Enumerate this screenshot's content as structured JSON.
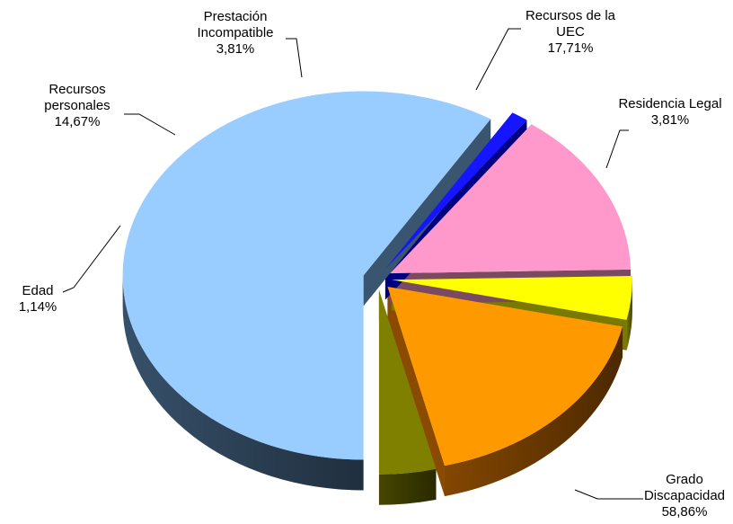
{
  "chart_data": {
    "type": "pie",
    "title": "",
    "exploded": true,
    "three_d": true,
    "slices": [
      {
        "name_lines": [
          "Grado",
          "Discapacidad"
        ],
        "value_text": "58,86%",
        "value": 58.86,
        "color": "#99CCFF",
        "side_color": "#3A5570"
      },
      {
        "name_lines": [
          "Edad"
        ],
        "value_text": "1,14%",
        "value": 1.14,
        "color": "#1515FF",
        "side_color": "#000080"
      },
      {
        "name_lines": [
          "Recursos",
          "personales"
        ],
        "value_text": "14,67%",
        "value": 14.67,
        "color": "#FF99CC",
        "side_color": "#7A4A60"
      },
      {
        "name_lines": [
          "Prestación",
          "Incompatible"
        ],
        "value_text": "3,81%",
        "value": 3.81,
        "color": "#FFFF00",
        "side_color": "#7A7A00"
      },
      {
        "name_lines": [
          "Recursos de la",
          "UEC"
        ],
        "value_text": "17,71%",
        "value": 17.71,
        "color": "#FF9900",
        "side_color": "#8A4A00"
      },
      {
        "name_lines": [
          "Residencia Legal"
        ],
        "value_text": "3,81%",
        "value": 3.81,
        "color": "#808000",
        "side_color": "#4A4A00"
      }
    ]
  }
}
